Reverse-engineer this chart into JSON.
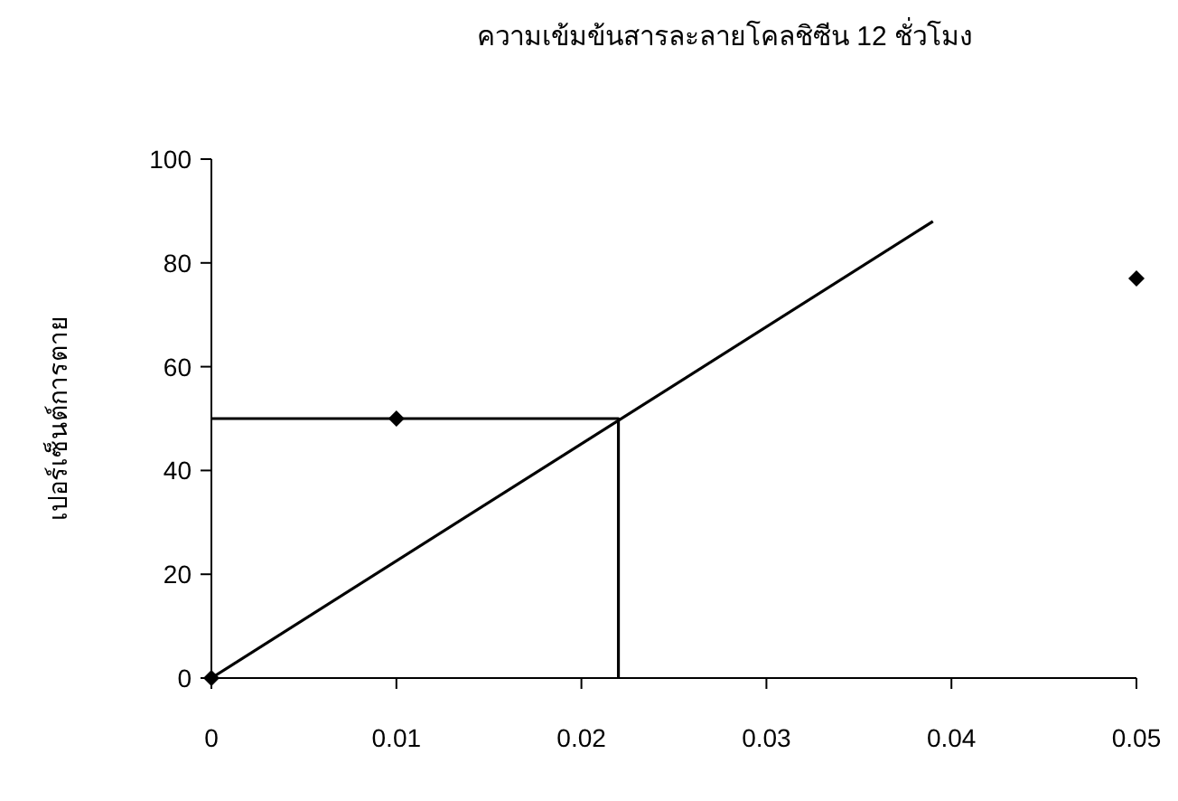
{
  "chart_data": {
    "type": "scatter",
    "title": "ความเข้มข้นสารละลายโคลชิซีน 12 ชั่วโมง",
    "ylabel": "เปอร์เซ็นต์การตาย",
    "xlim": [
      0,
      0.05
    ],
    "ylim": [
      0,
      100
    ],
    "xticks": [
      0,
      0.01,
      0.02,
      0.03,
      0.04,
      0.05
    ],
    "yticks": [
      0,
      20,
      40,
      60,
      80,
      100
    ],
    "grid": false,
    "marker": "diamond",
    "series": [
      {
        "color": "#000000",
        "x": [
          0,
          0.01,
          0.05
        ],
        "values": [
          0,
          50,
          77
        ]
      },
      {
        "type": "line",
        "color": "#000000",
        "marker": "none",
        "line_style": "solid",
        "x": [
          0,
          0.039
        ],
        "values": [
          0,
          88
        ]
      },
      {
        "type": "line",
        "color": "#000000",
        "marker": "none",
        "line_style": "solid",
        "x": [
          0,
          0.022,
          0.022
        ],
        "values": [
          50,
          50,
          0
        ]
      }
    ]
  }
}
